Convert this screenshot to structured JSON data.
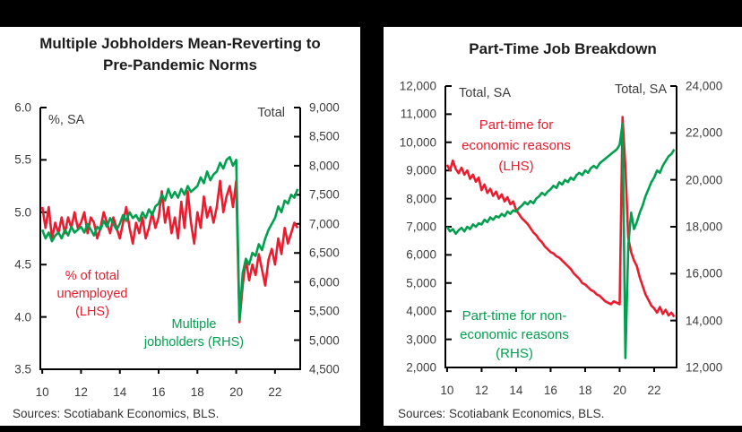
{
  "page": {
    "source_note": "Sources: Scotiabank Economics, BLS."
  },
  "colors": {
    "red": "#EC1B2D",
    "green": "#00A04F",
    "axis": "#000000",
    "tick_text": "#3d3d3d"
  },
  "chart_data": [
    {
      "type": "line",
      "title": "Multiple Jobholders Mean-Reverting to Pre-Pandemic Norms",
      "title_lines": [
        "Multiple Jobholders Mean-Reverting to",
        "Pre-Pandemic Norms"
      ],
      "left_axis_label": "%, SA",
      "right_axis_label": "Total",
      "ylim_left": [
        3.5,
        6.0
      ],
      "yticks_left": [
        {
          "v": 6.0,
          "label": "6.0"
        },
        {
          "v": 5.5,
          "label": "5.5"
        },
        {
          "v": 5.0,
          "label": "5.0"
        },
        {
          "v": 4.5,
          "label": "4.5"
        },
        {
          "v": 4.0,
          "label": "4.0"
        },
        {
          "v": 3.5,
          "label": "3.5"
        }
      ],
      "ylim_right": [
        4500,
        9000
      ],
      "yticks_right": [
        {
          "v": 9000,
          "label": "9,000"
        },
        {
          "v": 8500,
          "label": "8,500"
        },
        {
          "v": 8000,
          "label": "8,000"
        },
        {
          "v": 7500,
          "label": "7,500"
        },
        {
          "v": 7000,
          "label": "7,000"
        },
        {
          "v": 6500,
          "label": "6,500"
        },
        {
          "v": 6000,
          "label": "6,000"
        },
        {
          "v": 5500,
          "label": "5,500"
        },
        {
          "v": 5000,
          "label": "5,000"
        },
        {
          "v": 4500,
          "label": "4,500"
        }
      ],
      "xticks": [
        {
          "v": 2010,
          "label": "10"
        },
        {
          "v": 2012,
          "label": "12"
        },
        {
          "v": 2014,
          "label": "14"
        },
        {
          "v": 2016,
          "label": "16"
        },
        {
          "v": 2018,
          "label": "18"
        },
        {
          "v": 2020,
          "label": "20"
        },
        {
          "v": 2022,
          "label": "22"
        }
      ],
      "x_start": 2010,
      "x_step": 0.16667,
      "series": [
        {
          "name": "% of total unemployed (LHS)",
          "axis": "left",
          "color": "red",
          "label_lines": [
            "% of total",
            "unemployed",
            "(LHS)"
          ],
          "values": [
            5.05,
            4.85,
            5.05,
            4.75,
            4.9,
            4.8,
            4.95,
            4.8,
            4.95,
            4.85,
            5.0,
            4.85,
            4.9,
            5.0,
            4.8,
            4.95,
            4.9,
            4.75,
            4.85,
            5.0,
            4.9,
            4.8,
            4.95,
            4.85,
            4.75,
            4.9,
            5.05,
            4.85,
            4.7,
            4.9,
            4.8,
            4.95,
            4.75,
            4.85,
            5.0,
            4.85,
            4.95,
            5.2,
            4.9,
            5.05,
            4.8,
            4.95,
            4.75,
            5.1,
            4.85,
            5.2,
            4.9,
            4.7,
            5.0,
            4.85,
            5.15,
            4.95,
            5.05,
            4.9,
            5.05,
            5.3,
            5.0,
            5.15,
            5.25,
            5.05,
            5.3,
            3.95,
            4.3,
            4.55,
            4.35,
            4.5,
            4.4,
            4.6,
            4.45,
            4.3,
            4.55,
            4.65,
            4.5,
            4.75,
            4.6,
            4.85,
            4.7,
            4.8,
            4.9,
            4.85
          ]
        },
        {
          "name": "Multiple jobholders (RHS)",
          "axis": "right",
          "color": "green",
          "label_lines": [
            "Multiple",
            "jobholders (RHS)"
          ],
          "values": [
            6900,
            6750,
            6850,
            6700,
            6800,
            6850,
            6750,
            6900,
            6800,
            6950,
            6850,
            6900,
            6950,
            6850,
            7000,
            6900,
            6800,
            6950,
            6900,
            7050,
            6950,
            7100,
            7000,
            6900,
            7000,
            7150,
            7050,
            7200,
            7100,
            7150,
            7050,
            7200,
            7100,
            7250,
            7150,
            7300,
            7350,
            7500,
            7400,
            7600,
            7450,
            7550,
            7450,
            7600,
            7500,
            7650,
            7550,
            7600,
            7650,
            7800,
            7700,
            7900,
            7750,
            7850,
            7900,
            8050,
            7950,
            8100,
            8150,
            8000,
            8100,
            5350,
            6150,
            6400,
            6300,
            6500,
            6450,
            6650,
            6550,
            6750,
            6900,
            7000,
            7100,
            7300,
            7200,
            7400,
            7350,
            7500,
            7450,
            7600
          ]
        }
      ]
    },
    {
      "type": "line",
      "title": "Part-Time Job Breakdown",
      "title_lines": [
        "Part-Time Job Breakdown"
      ],
      "left_axis_label": "Total, SA",
      "right_axis_label": "Total, SA",
      "ylim_left": [
        2000,
        12000
      ],
      "yticks_left": [
        {
          "v": 12000,
          "label": "12,000"
        },
        {
          "v": 11000,
          "label": "11,000"
        },
        {
          "v": 10000,
          "label": "10,000"
        },
        {
          "v": 9000,
          "label": "9,000"
        },
        {
          "v": 8000,
          "label": "8,000"
        },
        {
          "v": 7000,
          "label": "7,000"
        },
        {
          "v": 6000,
          "label": "6,000"
        },
        {
          "v": 5000,
          "label": "5,000"
        },
        {
          "v": 4000,
          "label": "4,000"
        },
        {
          "v": 3000,
          "label": "3,000"
        },
        {
          "v": 2000,
          "label": "2,000"
        }
      ],
      "ylim_right": [
        12000,
        24000
      ],
      "yticks_right": [
        {
          "v": 24000,
          "label": "24,000"
        },
        {
          "v": 22000,
          "label": "22,000"
        },
        {
          "v": 20000,
          "label": "20,000"
        },
        {
          "v": 18000,
          "label": "18,000"
        },
        {
          "v": 16000,
          "label": "16,000"
        },
        {
          "v": 14000,
          "label": "14,000"
        },
        {
          "v": 12000,
          "label": "12,000"
        }
      ],
      "xticks": [
        {
          "v": 2010,
          "label": "10"
        },
        {
          "v": 2012,
          "label": "12"
        },
        {
          "v": 2014,
          "label": "14"
        },
        {
          "v": 2016,
          "label": "16"
        },
        {
          "v": 2018,
          "label": "18"
        },
        {
          "v": 2020,
          "label": "20"
        },
        {
          "v": 2022,
          "label": "22"
        }
      ],
      "x_start": 2010,
      "x_step": 0.16667,
      "series": [
        {
          "name": "Part-time for economic reasons (LHS)",
          "axis": "left",
          "color": "red",
          "label_lines": [
            "Part-time for",
            "economic reasons",
            "(LHS)"
          ],
          "values": [
            9200,
            9000,
            9350,
            9050,
            8900,
            9100,
            8850,
            9000,
            8700,
            8850,
            8600,
            8750,
            8300,
            8500,
            8200,
            8350,
            8100,
            8250,
            8000,
            8150,
            7900,
            8050,
            7800,
            7900,
            7600,
            7450,
            7300,
            7200,
            7100,
            6950,
            6800,
            6700,
            6550,
            6450,
            6300,
            6200,
            6100,
            6050,
            5950,
            5900,
            5800,
            5700,
            5600,
            5500,
            5350,
            5250,
            5150,
            5000,
            4950,
            4850,
            4750,
            4700,
            4600,
            4550,
            4450,
            4350,
            4300,
            4250,
            4350,
            4300,
            4250,
            10900,
            9100,
            6600,
            6100,
            5800,
            5600,
            5200,
            4900,
            4600,
            4400,
            4200,
            4100,
            3950,
            4150,
            3900,
            4050,
            3850,
            3950,
            3800
          ]
        },
        {
          "name": "Part-time for non-economic reasons (RHS)",
          "axis": "right",
          "color": "green",
          "label_lines": [
            "Part-time for non-",
            "economic reasons",
            "(RHS)"
          ],
          "values": [
            18000,
            17800,
            17900,
            17700,
            17850,
            17950,
            17800,
            18000,
            17900,
            18100,
            18000,
            18150,
            18100,
            18300,
            18200,
            18400,
            18300,
            18450,
            18400,
            18550,
            18450,
            18650,
            18550,
            18700,
            18650,
            18800,
            18900,
            19050,
            18950,
            19100,
            19000,
            19200,
            19300,
            19450,
            19350,
            19500,
            19600,
            19750,
            19650,
            19900,
            19800,
            20000,
            19900,
            20100,
            20000,
            20200,
            20300,
            20200,
            20400,
            20300,
            20500,
            20600,
            20500,
            20700,
            20800,
            20900,
            21000,
            21100,
            21200,
            21300,
            21500,
            22400,
            12400,
            17200,
            18600,
            17900,
            18200,
            18600,
            18900,
            19300,
            19600,
            19900,
            20100,
            20400,
            20300,
            20600,
            20800,
            21000,
            21100,
            21300
          ]
        }
      ]
    }
  ]
}
